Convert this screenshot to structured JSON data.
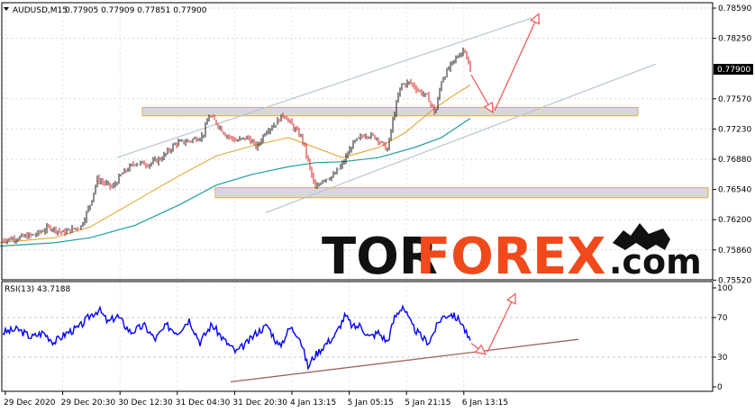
{
  "header": {
    "symbol": "AUDUSD,M15",
    "ohlc": "0.77905 0.77909 0.77851 0.77900"
  },
  "watermark": {
    "part1": "TOR",
    "part2": "FOREX",
    "part3": ".com"
  },
  "colors": {
    "up_candle": "#1a1a1a",
    "down_candle": "#d42020",
    "ma_fast": "#e0a020",
    "ma_slow": "#20a0a0",
    "channel": "#b8c4d0",
    "zone_fill": "#d8d8d8",
    "zone_border": "#e0b040",
    "arrow": "#f06060",
    "rsi_line": "#0000ff",
    "rsi_trend": "#a06060",
    "watermark_accent": "#f04a1c"
  },
  "chart_data": [
    {
      "type": "candlestick",
      "title": "AUDUSD,M15",
      "price_axis_ticks": [
        "0.78590",
        "0.78250",
        "0.77570",
        "0.77230",
        "0.76880",
        "0.76540",
        "0.76200",
        "0.75860",
        "0.75520"
      ],
      "current_price_label": "0.77900",
      "ylim": [
        0.7545,
        0.7868
      ],
      "x_tick_labels": [
        "29 Dec 2020",
        "29 Dec 20:30",
        "30 Dec 12:30",
        "31 Dec 04:30",
        "31 Dec 20:30",
        "4 Jan 13:15",
        "5 Jan 05:15",
        "5 Jan 21:15",
        "6 Jan 13:15"
      ],
      "price_path": [
        [
          0,
          0.7589
        ],
        [
          20,
          0.7592
        ],
        [
          40,
          0.7596
        ],
        [
          55,
          0.7605
        ],
        [
          70,
          0.7598
        ],
        [
          90,
          0.7606
        ],
        [
          100,
          0.7632
        ],
        [
          108,
          0.7662
        ],
        [
          115,
          0.7658
        ],
        [
          125,
          0.7652
        ],
        [
          135,
          0.7668
        ],
        [
          150,
          0.7682
        ],
        [
          165,
          0.768
        ],
        [
          180,
          0.7688
        ],
        [
          195,
          0.7705
        ],
        [
          210,
          0.7708
        ],
        [
          225,
          0.7714
        ],
        [
          232,
          0.7738
        ],
        [
          240,
          0.773
        ],
        [
          250,
          0.7716
        ],
        [
          262,
          0.7708
        ],
        [
          275,
          0.7712
        ],
        [
          285,
          0.77
        ],
        [
          295,
          0.772
        ],
        [
          305,
          0.7728
        ],
        [
          315,
          0.774
        ],
        [
          325,
          0.7725
        ],
        [
          335,
          0.7712
        ],
        [
          342,
          0.7683
        ],
        [
          350,
          0.765
        ],
        [
          358,
          0.7662
        ],
        [
          370,
          0.7666
        ],
        [
          380,
          0.768
        ],
        [
          392,
          0.7705
        ],
        [
          405,
          0.7716
        ],
        [
          418,
          0.7712
        ],
        [
          430,
          0.7697
        ],
        [
          437,
          0.7738
        ],
        [
          445,
          0.7775
        ],
        [
          455,
          0.7778
        ],
        [
          465,
          0.7768
        ],
        [
          475,
          0.776
        ],
        [
          483,
          0.774
        ],
        [
          490,
          0.778
        ],
        [
          500,
          0.7798
        ],
        [
          510,
          0.7812
        ],
        [
          516,
          0.7818
        ],
        [
          522,
          0.779
        ]
      ],
      "ma_fast_path": [
        [
          0,
          0.7586
        ],
        [
          60,
          0.7592
        ],
        [
          100,
          0.7605
        ],
        [
          150,
          0.7636
        ],
        [
          200,
          0.7667
        ],
        [
          240,
          0.769
        ],
        [
          280,
          0.7702
        ],
        [
          320,
          0.7712
        ],
        [
          350,
          0.77
        ],
        [
          380,
          0.7688
        ],
        [
          420,
          0.77
        ],
        [
          450,
          0.7718
        ],
        [
          480,
          0.7745
        ],
        [
          500,
          0.776
        ],
        [
          522,
          0.7775
        ]
      ],
      "ma_slow_path": [
        [
          0,
          0.7582
        ],
        [
          60,
          0.7586
        ],
        [
          100,
          0.7592
        ],
        [
          150,
          0.7607
        ],
        [
          200,
          0.7632
        ],
        [
          240,
          0.7655
        ],
        [
          280,
          0.7668
        ],
        [
          320,
          0.7677
        ],
        [
          350,
          0.7682
        ],
        [
          380,
          0.7683
        ],
        [
          420,
          0.7688
        ],
        [
          460,
          0.77
        ],
        [
          490,
          0.7712
        ],
        [
          522,
          0.7735
        ]
      ],
      "resistance_zone": [
        0.7748,
        0.7738
      ],
      "support_zone": [
        0.7652,
        0.764
      ],
      "channel_upper": [
        [
          130,
          0.7688
        ],
        [
          590,
          0.7855
        ]
      ],
      "channel_lower": [
        [
          295,
          0.7622
        ],
        [
          728,
          0.78
        ]
      ],
      "forecast_arrows": [
        [
          [
            523,
            0.7787
          ],
          [
            547,
            0.7742
          ]
        ],
        [
          [
            549,
            0.7744
          ],
          [
            598,
            0.786
          ]
        ]
      ]
    },
    {
      "type": "line",
      "title": "RSI(13) 43.7188",
      "ylim": [
        0,
        100
      ],
      "levels": [
        30,
        70
      ],
      "y_tick_labels": [
        "100",
        "70",
        "30",
        "0"
      ],
      "rsi_path": [
        [
          3,
          55
        ],
        [
          20,
          58
        ],
        [
          35,
          50
        ],
        [
          48,
          55
        ],
        [
          60,
          45
        ],
        [
          75,
          55
        ],
        [
          88,
          60
        ],
        [
          100,
          72
        ],
        [
          110,
          78
        ],
        [
          120,
          65
        ],
        [
          130,
          72
        ],
        [
          145,
          55
        ],
        [
          160,
          62
        ],
        [
          172,
          48
        ],
        [
          185,
          62
        ],
        [
          197,
          55
        ],
        [
          210,
          68
        ],
        [
          222,
          45
        ],
        [
          235,
          63
        ],
        [
          248,
          48
        ],
        [
          262,
          35
        ],
        [
          275,
          45
        ],
        [
          285,
          55
        ],
        [
          297,
          62
        ],
        [
          310,
          40
        ],
        [
          322,
          60
        ],
        [
          332,
          52
        ],
        [
          342,
          20
        ],
        [
          348,
          30
        ],
        [
          360,
          42
        ],
        [
          372,
          52
        ],
        [
          383,
          72
        ],
        [
          392,
          60
        ],
        [
          400,
          62
        ],
        [
          410,
          50
        ],
        [
          420,
          55
        ],
        [
          430,
          45
        ],
        [
          438,
          70
        ],
        [
          447,
          82
        ],
        [
          457,
          62
        ],
        [
          468,
          50
        ],
        [
          476,
          45
        ],
        [
          483,
          58
        ],
        [
          490,
          70
        ],
        [
          500,
          74
        ],
        [
          512,
          66
        ],
        [
          522,
          44
        ]
      ],
      "trend_line": [
        [
          256,
          5
        ],
        [
          642,
          48
        ]
      ],
      "forecast_arrows": [
        [
          [
            523,
            44
          ],
          [
            539,
            33
          ]
        ],
        [
          [
            541,
            35
          ],
          [
            572,
            94
          ]
        ]
      ]
    }
  ]
}
